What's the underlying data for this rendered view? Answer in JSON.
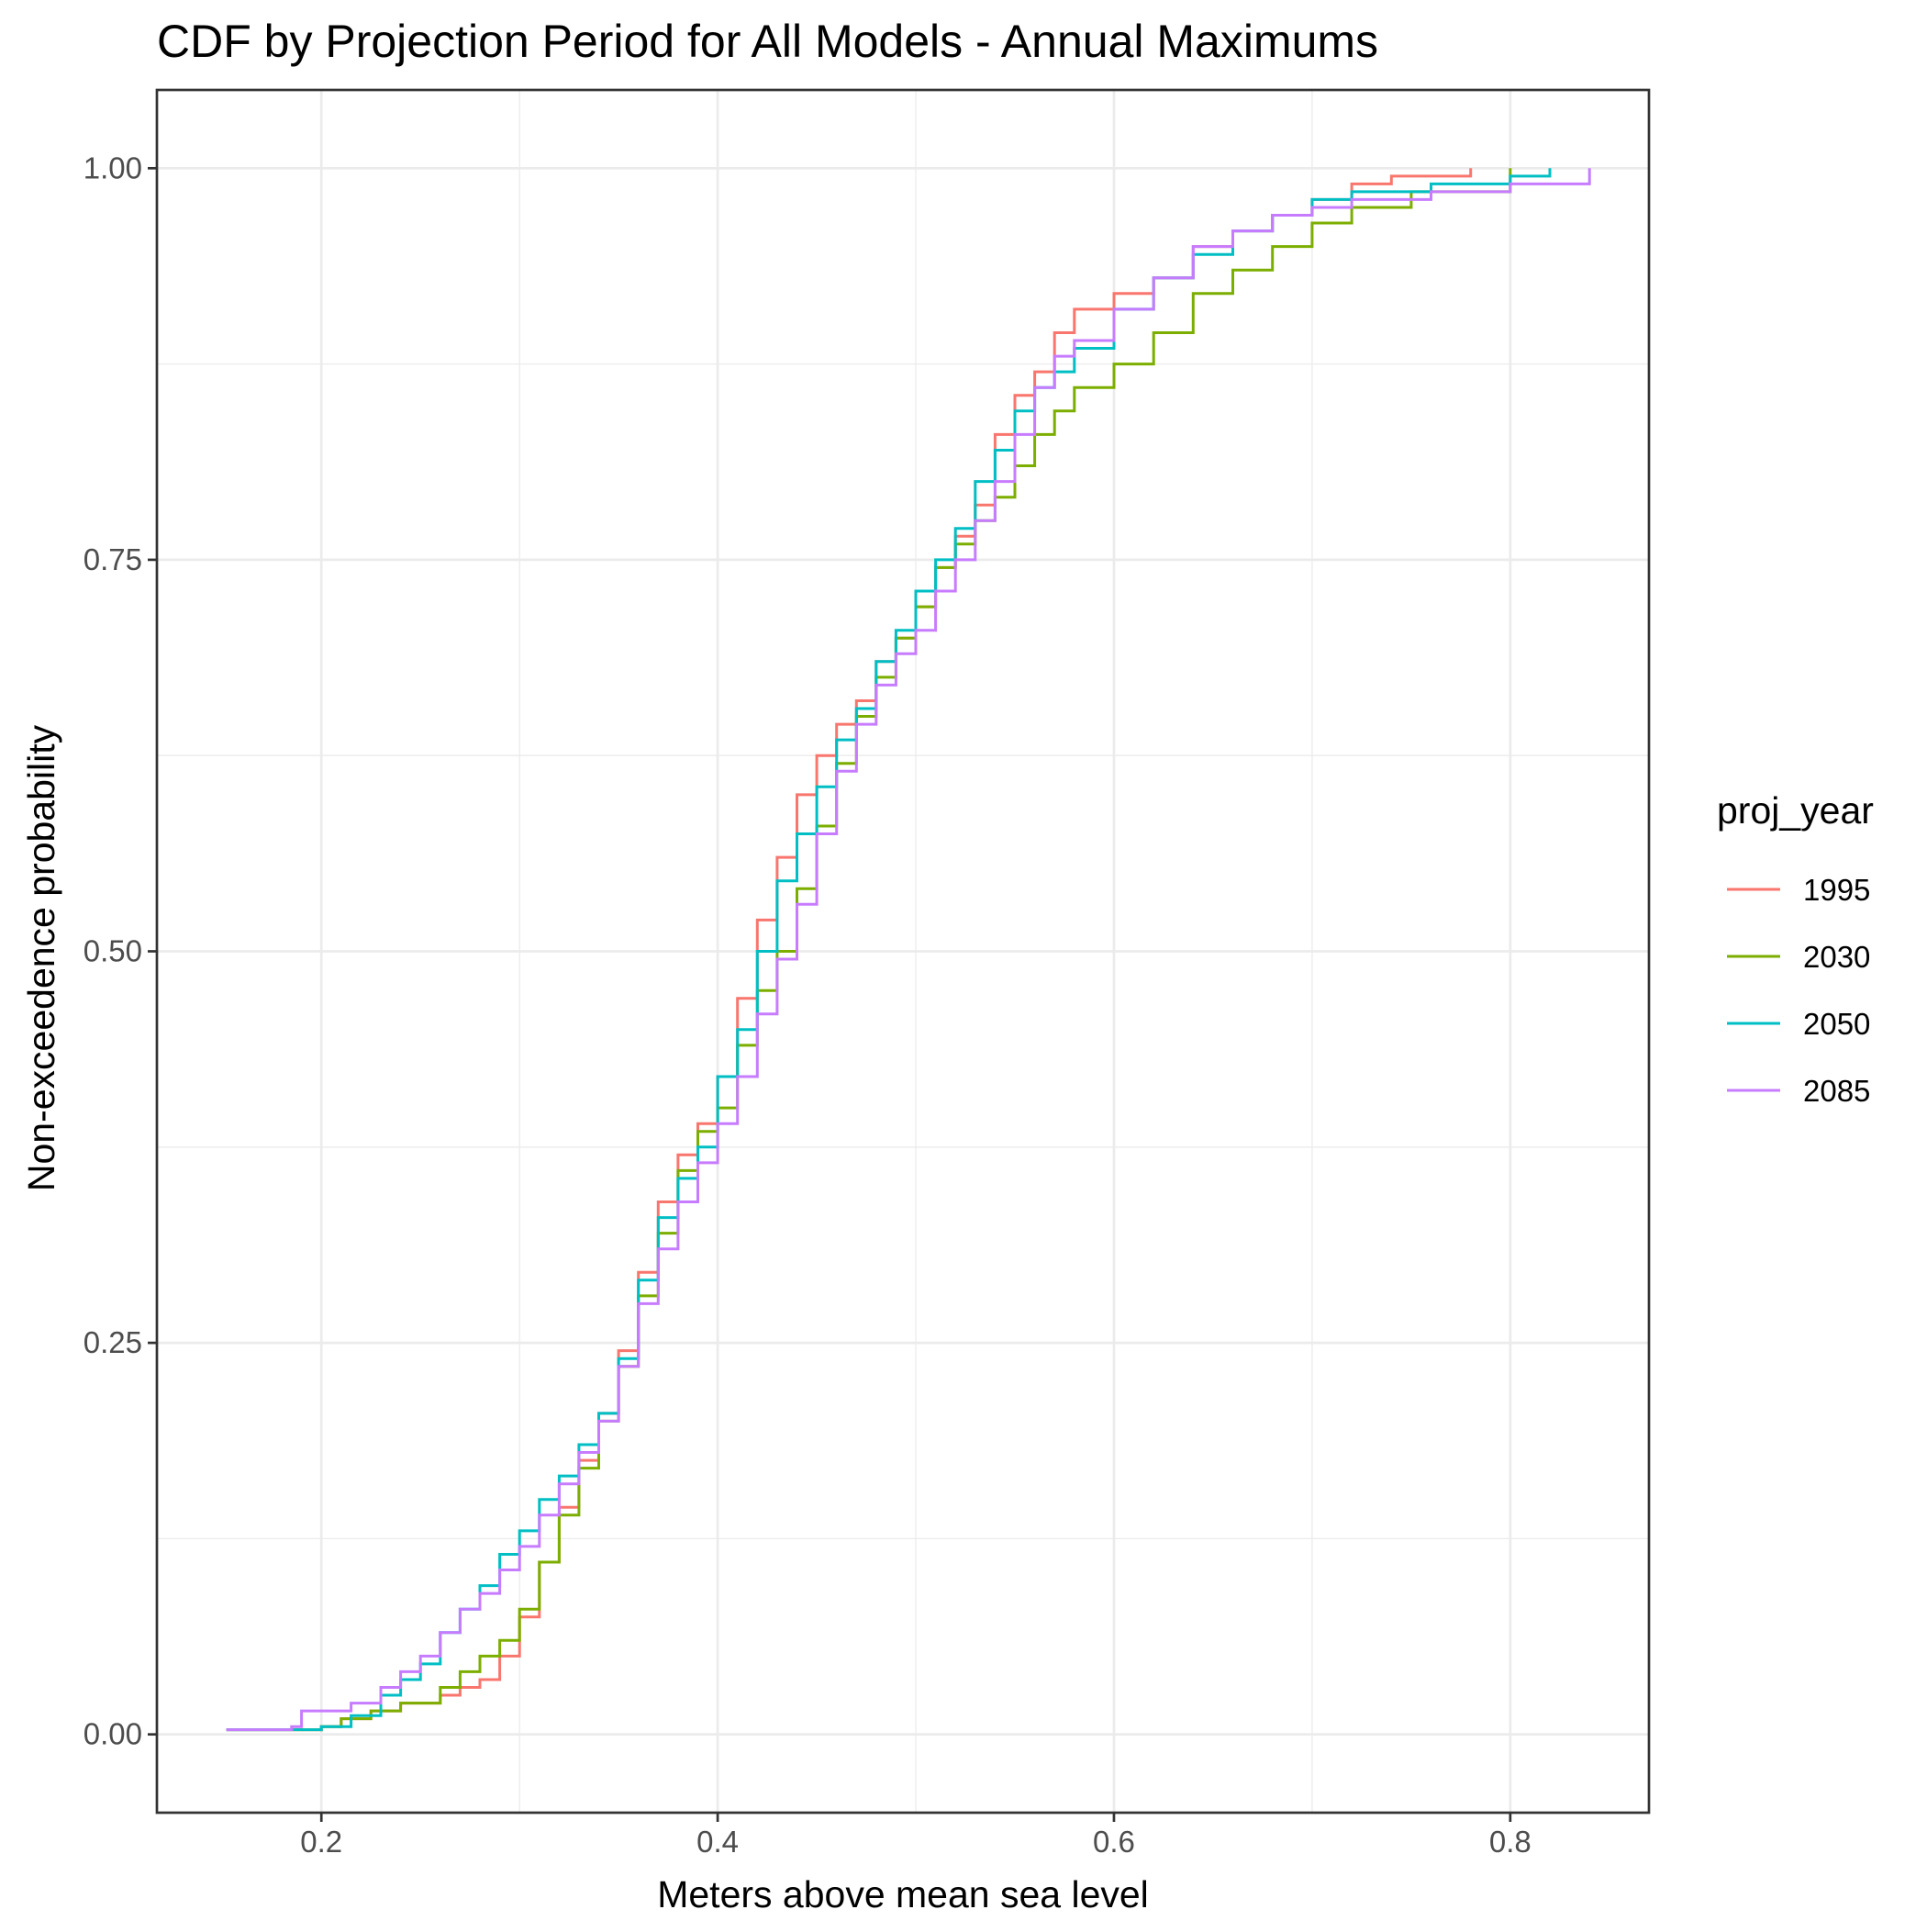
{
  "chart_data": {
    "type": "line",
    "title": "CDF by Projection Period for All Models - Annual Maximums",
    "xlabel": "Meters above mean sea level",
    "ylabel": "Non-exceedence probability",
    "xlim": [
      0.117,
      0.87
    ],
    "ylim": [
      -0.05,
      1.05
    ],
    "x_ticks": [
      0.2,
      0.4,
      0.6,
      0.8
    ],
    "x_tick_labels": [
      "0.2",
      "0.4",
      "0.6",
      "0.8"
    ],
    "y_ticks": [
      0,
      0.25,
      0.5,
      0.75,
      1
    ],
    "y_tick_labels": [
      "0.00",
      "0.25",
      "0.50",
      "0.75",
      "1.00"
    ],
    "grid": true,
    "legend": {
      "title": "proj_year",
      "position": "right"
    },
    "series": [
      {
        "name": "1995",
        "color": "#F8766D",
        "points": [
          [
            0.152,
            0.003
          ],
          [
            0.2,
            0.005
          ],
          [
            0.21,
            0.01
          ],
          [
            0.225,
            0.015
          ],
          [
            0.24,
            0.02
          ],
          [
            0.26,
            0.025
          ],
          [
            0.27,
            0.03
          ],
          [
            0.28,
            0.035
          ],
          [
            0.29,
            0.05
          ],
          [
            0.3,
            0.075
          ],
          [
            0.31,
            0.11
          ],
          [
            0.32,
            0.145
          ],
          [
            0.33,
            0.175
          ],
          [
            0.34,
            0.205
          ],
          [
            0.35,
            0.245
          ],
          [
            0.36,
            0.295
          ],
          [
            0.37,
            0.34
          ],
          [
            0.38,
            0.37
          ],
          [
            0.39,
            0.39
          ],
          [
            0.4,
            0.42
          ],
          [
            0.41,
            0.47
          ],
          [
            0.42,
            0.52
          ],
          [
            0.43,
            0.56
          ],
          [
            0.44,
            0.6
          ],
          [
            0.45,
            0.625
          ],
          [
            0.46,
            0.645
          ],
          [
            0.47,
            0.66
          ],
          [
            0.48,
            0.685
          ],
          [
            0.49,
            0.7
          ],
          [
            0.5,
            0.72
          ],
          [
            0.51,
            0.745
          ],
          [
            0.52,
            0.765
          ],
          [
            0.53,
            0.785
          ],
          [
            0.54,
            0.83
          ],
          [
            0.55,
            0.855
          ],
          [
            0.56,
            0.87
          ],
          [
            0.57,
            0.895
          ],
          [
            0.58,
            0.91
          ],
          [
            0.6,
            0.92
          ],
          [
            0.62,
            0.93
          ],
          [
            0.64,
            0.95
          ],
          [
            0.66,
            0.96
          ],
          [
            0.68,
            0.97
          ],
          [
            0.7,
            0.98
          ],
          [
            0.72,
            0.99
          ],
          [
            0.74,
            0.995
          ],
          [
            0.78,
            1.0
          ]
        ]
      },
      {
        "name": "2030",
        "color": "#7CAE00",
        "points": [
          [
            0.152,
            0.003
          ],
          [
            0.2,
            0.005
          ],
          [
            0.21,
            0.01
          ],
          [
            0.225,
            0.015
          ],
          [
            0.24,
            0.02
          ],
          [
            0.26,
            0.03
          ],
          [
            0.27,
            0.04
          ],
          [
            0.28,
            0.05
          ],
          [
            0.29,
            0.06
          ],
          [
            0.3,
            0.08
          ],
          [
            0.31,
            0.11
          ],
          [
            0.32,
            0.14
          ],
          [
            0.33,
            0.17
          ],
          [
            0.34,
            0.2
          ],
          [
            0.35,
            0.235
          ],
          [
            0.36,
            0.28
          ],
          [
            0.37,
            0.32
          ],
          [
            0.38,
            0.36
          ],
          [
            0.39,
            0.385
          ],
          [
            0.4,
            0.4
          ],
          [
            0.41,
            0.44
          ],
          [
            0.42,
            0.475
          ],
          [
            0.43,
            0.5
          ],
          [
            0.44,
            0.54
          ],
          [
            0.45,
            0.58
          ],
          [
            0.46,
            0.62
          ],
          [
            0.47,
            0.65
          ],
          [
            0.48,
            0.675
          ],
          [
            0.49,
            0.7
          ],
          [
            0.5,
            0.72
          ],
          [
            0.51,
            0.745
          ],
          [
            0.52,
            0.76
          ],
          [
            0.53,
            0.775
          ],
          [
            0.54,
            0.79
          ],
          [
            0.55,
            0.81
          ],
          [
            0.56,
            0.83
          ],
          [
            0.57,
            0.845
          ],
          [
            0.58,
            0.86
          ],
          [
            0.6,
            0.875
          ],
          [
            0.62,
            0.895
          ],
          [
            0.64,
            0.92
          ],
          [
            0.66,
            0.935
          ],
          [
            0.68,
            0.95
          ],
          [
            0.7,
            0.965
          ],
          [
            0.72,
            0.975
          ],
          [
            0.75,
            0.985
          ],
          [
            0.8,
            1.0
          ]
        ]
      },
      {
        "name": "2050",
        "color": "#00BFC4",
        "points": [
          [
            0.152,
            0.003
          ],
          [
            0.2,
            0.005
          ],
          [
            0.215,
            0.012
          ],
          [
            0.23,
            0.025
          ],
          [
            0.24,
            0.035
          ],
          [
            0.25,
            0.045
          ],
          [
            0.26,
            0.065
          ],
          [
            0.27,
            0.08
          ],
          [
            0.28,
            0.095
          ],
          [
            0.29,
            0.115
          ],
          [
            0.3,
            0.13
          ],
          [
            0.31,
            0.15
          ],
          [
            0.32,
            0.165
          ],
          [
            0.33,
            0.185
          ],
          [
            0.34,
            0.205
          ],
          [
            0.35,
            0.24
          ],
          [
            0.36,
            0.29
          ],
          [
            0.37,
            0.33
          ],
          [
            0.38,
            0.355
          ],
          [
            0.39,
            0.375
          ],
          [
            0.4,
            0.42
          ],
          [
            0.41,
            0.45
          ],
          [
            0.42,
            0.5
          ],
          [
            0.43,
            0.545
          ],
          [
            0.44,
            0.575
          ],
          [
            0.45,
            0.605
          ],
          [
            0.46,
            0.635
          ],
          [
            0.47,
            0.655
          ],
          [
            0.48,
            0.685
          ],
          [
            0.49,
            0.705
          ],
          [
            0.5,
            0.73
          ],
          [
            0.51,
            0.75
          ],
          [
            0.52,
            0.77
          ],
          [
            0.53,
            0.8
          ],
          [
            0.54,
            0.82
          ],
          [
            0.55,
            0.845
          ],
          [
            0.56,
            0.86
          ],
          [
            0.57,
            0.87
          ],
          [
            0.58,
            0.885
          ],
          [
            0.6,
            0.91
          ],
          [
            0.62,
            0.93
          ],
          [
            0.64,
            0.945
          ],
          [
            0.66,
            0.96
          ],
          [
            0.68,
            0.97
          ],
          [
            0.7,
            0.98
          ],
          [
            0.72,
            0.985
          ],
          [
            0.76,
            0.99
          ],
          [
            0.8,
            0.995
          ],
          [
            0.82,
            1.0
          ]
        ]
      },
      {
        "name": "2085",
        "color": "#C77CFF",
        "points": [
          [
            0.152,
            0.003
          ],
          [
            0.185,
            0.005
          ],
          [
            0.19,
            0.015
          ],
          [
            0.215,
            0.02
          ],
          [
            0.23,
            0.03
          ],
          [
            0.24,
            0.04
          ],
          [
            0.25,
            0.05
          ],
          [
            0.26,
            0.065
          ],
          [
            0.27,
            0.08
          ],
          [
            0.28,
            0.09
          ],
          [
            0.29,
            0.105
          ],
          [
            0.3,
            0.12
          ],
          [
            0.31,
            0.14
          ],
          [
            0.32,
            0.16
          ],
          [
            0.33,
            0.18
          ],
          [
            0.34,
            0.2
          ],
          [
            0.35,
            0.235
          ],
          [
            0.36,
            0.275
          ],
          [
            0.37,
            0.31
          ],
          [
            0.38,
            0.34
          ],
          [
            0.39,
            0.365
          ],
          [
            0.4,
            0.39
          ],
          [
            0.41,
            0.42
          ],
          [
            0.42,
            0.46
          ],
          [
            0.43,
            0.495
          ],
          [
            0.44,
            0.53
          ],
          [
            0.45,
            0.575
          ],
          [
            0.46,
            0.615
          ],
          [
            0.47,
            0.645
          ],
          [
            0.48,
            0.67
          ],
          [
            0.49,
            0.69
          ],
          [
            0.5,
            0.705
          ],
          [
            0.51,
            0.73
          ],
          [
            0.52,
            0.75
          ],
          [
            0.53,
            0.775
          ],
          [
            0.54,
            0.8
          ],
          [
            0.55,
            0.83
          ],
          [
            0.56,
            0.86
          ],
          [
            0.57,
            0.88
          ],
          [
            0.58,
            0.89
          ],
          [
            0.6,
            0.91
          ],
          [
            0.62,
            0.93
          ],
          [
            0.64,
            0.95
          ],
          [
            0.66,
            0.96
          ],
          [
            0.68,
            0.97
          ],
          [
            0.7,
            0.975
          ],
          [
            0.72,
            0.98
          ],
          [
            0.76,
            0.985
          ],
          [
            0.8,
            0.99
          ],
          [
            0.84,
            1.0
          ]
        ]
      }
    ]
  }
}
